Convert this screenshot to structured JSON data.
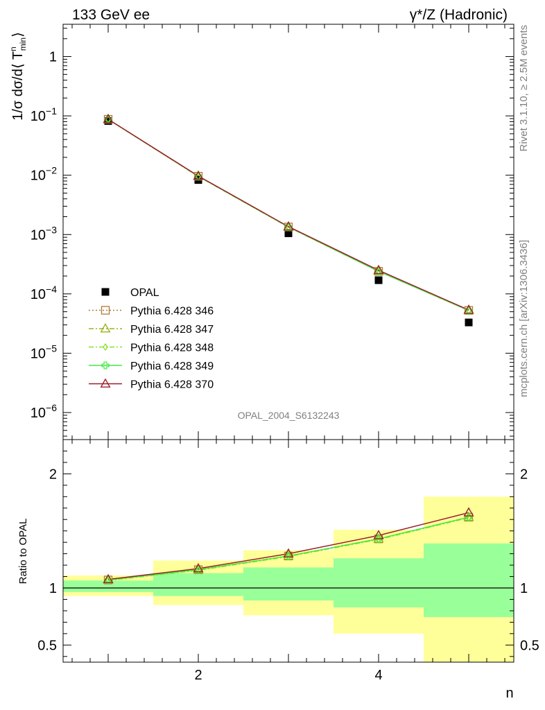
{
  "header": {
    "left_label": "133 GeV ee",
    "right_label": "γ*/Z (Hadronic)"
  },
  "side_labels": {
    "rivet": "Rivet 3.1.10, ≥ 2.5M events",
    "mcplots": "mcplots.cern.ch [arXiv:1306.3436]"
  },
  "analysis_id": "OPAL_2004_S6132243",
  "legend": [
    {
      "label": "OPAL",
      "color": "#000000",
      "marker": "filled-square",
      "line": "none"
    },
    {
      "label": "Pythia 6.428 346",
      "color": "#b07836",
      "marker": "open-square",
      "line": "dotted"
    },
    {
      "label": "Pythia 6.428 347",
      "color": "#99b31e",
      "marker": "open-triangle",
      "line": "dashdot"
    },
    {
      "label": "Pythia 6.428 348",
      "color": "#88e02a",
      "marker": "open-diamond",
      "line": "dashdot"
    },
    {
      "label": "Pythia 6.428 349",
      "color": "#44e844",
      "marker": "open-cross",
      "line": "solid"
    },
    {
      "label": "Pythia 6.428 370",
      "color": "#9b1e2e",
      "marker": "open-triangle",
      "line": "solid"
    }
  ],
  "chart_data": [
    {
      "type": "scatter",
      "title": "",
      "xlabel": "",
      "ylabel_main": "1/σ dσ/d⟨ T",
      "ylabel_sup": "n",
      "ylabel_sub": "min",
      "ylabel_tail": "⟩",
      "yscale": "log",
      "xlim": [
        0.5,
        5.5
      ],
      "ylim": [
        3.5e-07,
        3.5
      ],
      "yticks": [
        {
          "value": 1,
          "base": "1",
          "exp": ""
        },
        {
          "value": 0.1,
          "base": "10",
          "exp": "−1"
        },
        {
          "value": 0.01,
          "base": "10",
          "exp": "−2"
        },
        {
          "value": 0.001,
          "base": "10",
          "exp": "−3"
        },
        {
          "value": 0.0001,
          "base": "10",
          "exp": "−4"
        },
        {
          "value": 1e-05,
          "base": "10",
          "exp": "−5"
        },
        {
          "value": 1e-06,
          "base": "10",
          "exp": "−6"
        }
      ],
      "series": [
        {
          "name": "OPAL",
          "x": [
            1,
            2,
            3,
            4,
            5
          ],
          "y": [
            0.082,
            0.0083,
            0.00105,
            0.00017,
            3.3e-05
          ]
        },
        {
          "name": "Pythia 6.428 346",
          "x": [
            1,
            2,
            3,
            4,
            5
          ],
          "y": [
            0.0875,
            0.0096,
            0.00134,
            0.00024,
            5.27e-05
          ]
        },
        {
          "name": "Pythia 6.428 347",
          "x": [
            1,
            2,
            3,
            4,
            5
          ],
          "y": [
            0.0875,
            0.0096,
            0.00134,
            0.00024,
            5.25e-05
          ]
        },
        {
          "name": "Pythia 6.428 348",
          "x": [
            1,
            2,
            3,
            4,
            5
          ],
          "y": [
            0.0874,
            0.0095,
            0.00133,
            0.00024,
            5.23e-05
          ]
        },
        {
          "name": "Pythia 6.428 349",
          "x": [
            1,
            2,
            3,
            4,
            5
          ],
          "y": [
            0.0875,
            0.0096,
            0.00134,
            0.00024,
            5.25e-05
          ]
        },
        {
          "name": "Pythia 6.428 370",
          "x": [
            1,
            2,
            3,
            4,
            5
          ],
          "y": [
            0.0878,
            0.0097,
            0.00136,
            0.00025,
            5.35e-05
          ]
        }
      ]
    },
    {
      "type": "scatter",
      "title": "",
      "xlabel": "n",
      "ylabel": "Ratio to OPAL",
      "xlim": [
        0.5,
        5.5
      ],
      "ylim": [
        0.35,
        2.3
      ],
      "xticks": [
        2,
        4
      ],
      "yticks": [
        0.5,
        1,
        2
      ],
      "bands": [
        {
          "x0": 0.5,
          "x1": 1.5,
          "inner": [
            0.965,
            1.065
          ],
          "outer": [
            0.93,
            1.11
          ]
        },
        {
          "x0": 1.5,
          "x1": 2.5,
          "inner": [
            0.93,
            1.13
          ],
          "outer": [
            0.85,
            1.24
          ]
        },
        {
          "x0": 2.5,
          "x1": 3.5,
          "inner": [
            0.89,
            1.18
          ],
          "outer": [
            0.76,
            1.33
          ]
        },
        {
          "x0": 3.5,
          "x1": 4.5,
          "inner": [
            0.83,
            1.26
          ],
          "outer": [
            0.6,
            1.51
          ]
        },
        {
          "x0": 4.5,
          "x1": 5.5,
          "inner": [
            0.745,
            1.39
          ],
          "outer": [
            0.35,
            1.8
          ]
        }
      ],
      "reference": 1,
      "series": [
        {
          "name": "Pythia 6.428 346",
          "x": [
            1,
            2,
            3,
            4,
            5
          ],
          "y": [
            1.07,
            1.16,
            1.28,
            1.43,
            1.62
          ]
        },
        {
          "name": "Pythia 6.428 347",
          "x": [
            1,
            2,
            3,
            4,
            5
          ],
          "y": [
            1.07,
            1.16,
            1.28,
            1.43,
            1.62
          ]
        },
        {
          "name": "Pythia 6.428 348",
          "x": [
            1,
            2,
            3,
            4,
            5
          ],
          "y": [
            1.065,
            1.155,
            1.275,
            1.425,
            1.615
          ]
        },
        {
          "name": "Pythia 6.428 349",
          "x": [
            1,
            2,
            3,
            4,
            5
          ],
          "y": [
            1.07,
            1.16,
            1.28,
            1.43,
            1.62
          ]
        },
        {
          "name": "Pythia 6.428 370",
          "x": [
            1,
            2,
            3,
            4,
            5
          ],
          "y": [
            1.075,
            1.17,
            1.3,
            1.46,
            1.66
          ]
        }
      ]
    }
  ]
}
